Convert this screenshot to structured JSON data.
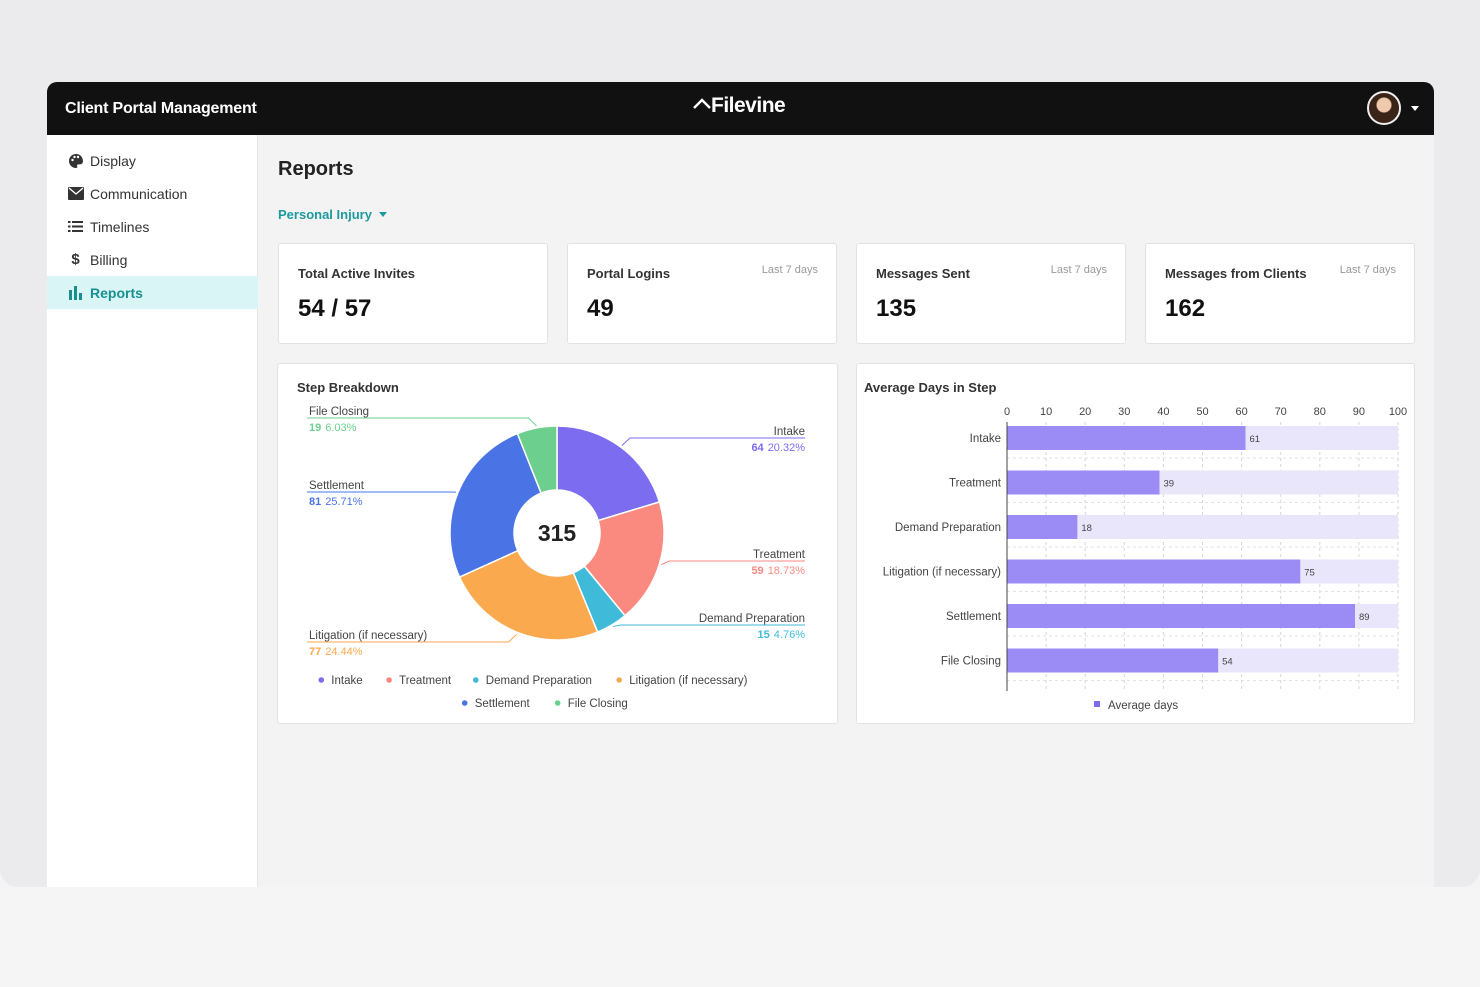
{
  "app": {
    "title": "Client Portal Management",
    "brand": "Filevine"
  },
  "sidebar": {
    "items": [
      {
        "label": "Display",
        "icon": "palette-icon"
      },
      {
        "label": "Communication",
        "icon": "envelope-icon"
      },
      {
        "label": "Timelines",
        "icon": "list-icon"
      },
      {
        "label": "Billing",
        "icon": "dollar-icon"
      },
      {
        "label": "Reports",
        "icon": "bar-chart-icon",
        "active": true
      }
    ]
  },
  "page": {
    "title": "Reports",
    "filter": "Personal Injury"
  },
  "stats": [
    {
      "label": "Total Active Invites",
      "period": "",
      "value": "54 / 57"
    },
    {
      "label": "Portal Logins",
      "period": "Last 7 days",
      "value": "49"
    },
    {
      "label": "Messages Sent",
      "period": "Last 7 days",
      "value": "135"
    },
    {
      "label": "Messages from Clients",
      "period": "Last 7 days",
      "value": "162"
    }
  ],
  "colors": {
    "intake": "#7b6cf0",
    "treatment": "#fa8a80",
    "demand": "#3fbad8",
    "litigation": "#fba94f",
    "settlement": "#4a74e6",
    "closing": "#6ccf8e",
    "bar": "#9b8cf5",
    "bar_track": "#e9e6fb",
    "accent": "#1d9a9d"
  },
  "chart_data": [
    {
      "type": "pie",
      "title": "Step Breakdown",
      "center_label": "315",
      "slices": [
        {
          "name": "Intake",
          "value": 64,
          "percent": "20.32%",
          "color": "#7b6cf0"
        },
        {
          "name": "Treatment",
          "value": 59,
          "percent": "18.73%",
          "color": "#fa8a80"
        },
        {
          "name": "Demand Preparation",
          "value": 15,
          "percent": "4.76%",
          "color": "#3fbad8"
        },
        {
          "name": "Litigation (if necessary)",
          "value": 77,
          "percent": "24.44%",
          "color": "#fba94f"
        },
        {
          "name": "Settlement",
          "value": 81,
          "percent": "25.71%",
          "color": "#4a74e6"
        },
        {
          "name": "File Closing",
          "value": 19,
          "percent": "6.03%",
          "color": "#6ccf8e"
        }
      ],
      "legend": [
        "Intake",
        "Treatment",
        "Demand Preparation",
        "Litigation (if necessary)",
        "Settlement",
        "File Closing"
      ]
    },
    {
      "type": "bar",
      "title": "Average Days in Step",
      "orientation": "horizontal",
      "categories": [
        "Intake",
        "Treatment",
        "Demand Preparation",
        "Litigation (if necessary)",
        "Settlement",
        "File Closing"
      ],
      "values": [
        61,
        39,
        18,
        75,
        89,
        54
      ],
      "xlim": [
        0,
        100
      ],
      "xticks": [
        "0",
        "10",
        "20",
        "30",
        "40",
        "50",
        "60",
        "70",
        "80",
        "90",
        "100"
      ],
      "series": [
        {
          "name": "Average days",
          "values": [
            61,
            39,
            18,
            75,
            89,
            54
          ]
        }
      ],
      "legend": "Average days",
      "grid": true
    }
  ]
}
